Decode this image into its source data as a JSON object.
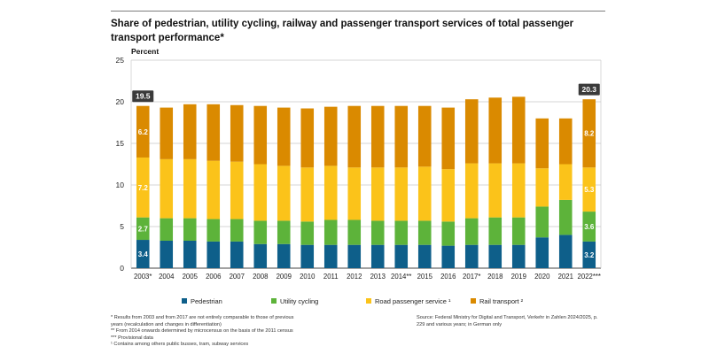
{
  "title": "Share of pedestrian, utility cycling, railway and passenger transport services of total passenger transport performance*",
  "chart_data": {
    "type": "bar",
    "stacked": true,
    "ylabel": "Percent",
    "ylim": [
      0,
      25
    ],
    "yticks": [
      0,
      5,
      10,
      15,
      20,
      25
    ],
    "grid": true,
    "categories": [
      "2003*",
      "2004",
      "2005",
      "2006",
      "2007",
      "2008",
      "2009",
      "2010",
      "2011",
      "2012",
      "2013",
      "2014**",
      "2015",
      "2016",
      "2017*",
      "2018",
      "2019",
      "2020",
      "2021",
      "2022***"
    ],
    "series": [
      {
        "name": "Pedestrian",
        "color": "#0e5f8a",
        "values": [
          3.4,
          3.3,
          3.3,
          3.2,
          3.2,
          2.9,
          2.9,
          2.8,
          2.8,
          2.8,
          2.8,
          2.8,
          2.8,
          2.7,
          2.8,
          2.8,
          2.8,
          3.7,
          4.0,
          3.2
        ]
      },
      {
        "name": "Utility cycling",
        "color": "#5db33a",
        "values": [
          2.7,
          2.7,
          2.7,
          2.7,
          2.7,
          2.8,
          2.8,
          2.8,
          3.0,
          3.0,
          2.9,
          2.9,
          2.9,
          2.9,
          3.2,
          3.3,
          3.3,
          3.7,
          4.2,
          3.6
        ]
      },
      {
        "name": "Road passenger service ¹",
        "color": "#fbc31a",
        "values": [
          7.2,
          7.1,
          7.1,
          7.0,
          6.9,
          6.8,
          6.6,
          6.5,
          6.5,
          6.3,
          6.4,
          6.4,
          6.5,
          6.3,
          6.6,
          6.5,
          6.5,
          4.6,
          4.3,
          5.3
        ]
      },
      {
        "name": "Rail transport ²",
        "color": "#da8a00",
        "values": [
          6.2,
          6.2,
          6.6,
          6.8,
          6.8,
          7.0,
          7.0,
          7.1,
          7.1,
          7.4,
          7.4,
          7.4,
          7.3,
          7.4,
          7.7,
          7.9,
          8.0,
          6.0,
          5.5,
          8.2
        ]
      }
    ],
    "data_labels": {
      "2003*": {
        "Pedestrian": "3.4",
        "Utility cycling": "2.7",
        "Road passenger service ¹": "7.2",
        "Rail transport ²": "6.2",
        "total": "19.5"
      },
      "2022***": {
        "Pedestrian": "3.2",
        "Utility cycling": "3.6",
        "Road passenger service ¹": "5.3",
        "Rail transport ²": "8.2",
        "total": "20.3"
      }
    },
    "legend_position": "bottom"
  },
  "footnotes": [
    "* Results from 2003 and from 2017 are not entirely comparable to those of previous",
    "years (recalculation and changes in differentiation)",
    "** From 2014 onwards determined by microcensus on the basis of the 2011 census",
    "*** Provisional data",
    "¹ Contains among others public busses, tram, subway services"
  ],
  "source": "Source: Federal Ministry for Digital and Transport, Verkehr in Zahlen 2024/2025, p. 229 and various years; in German only"
}
